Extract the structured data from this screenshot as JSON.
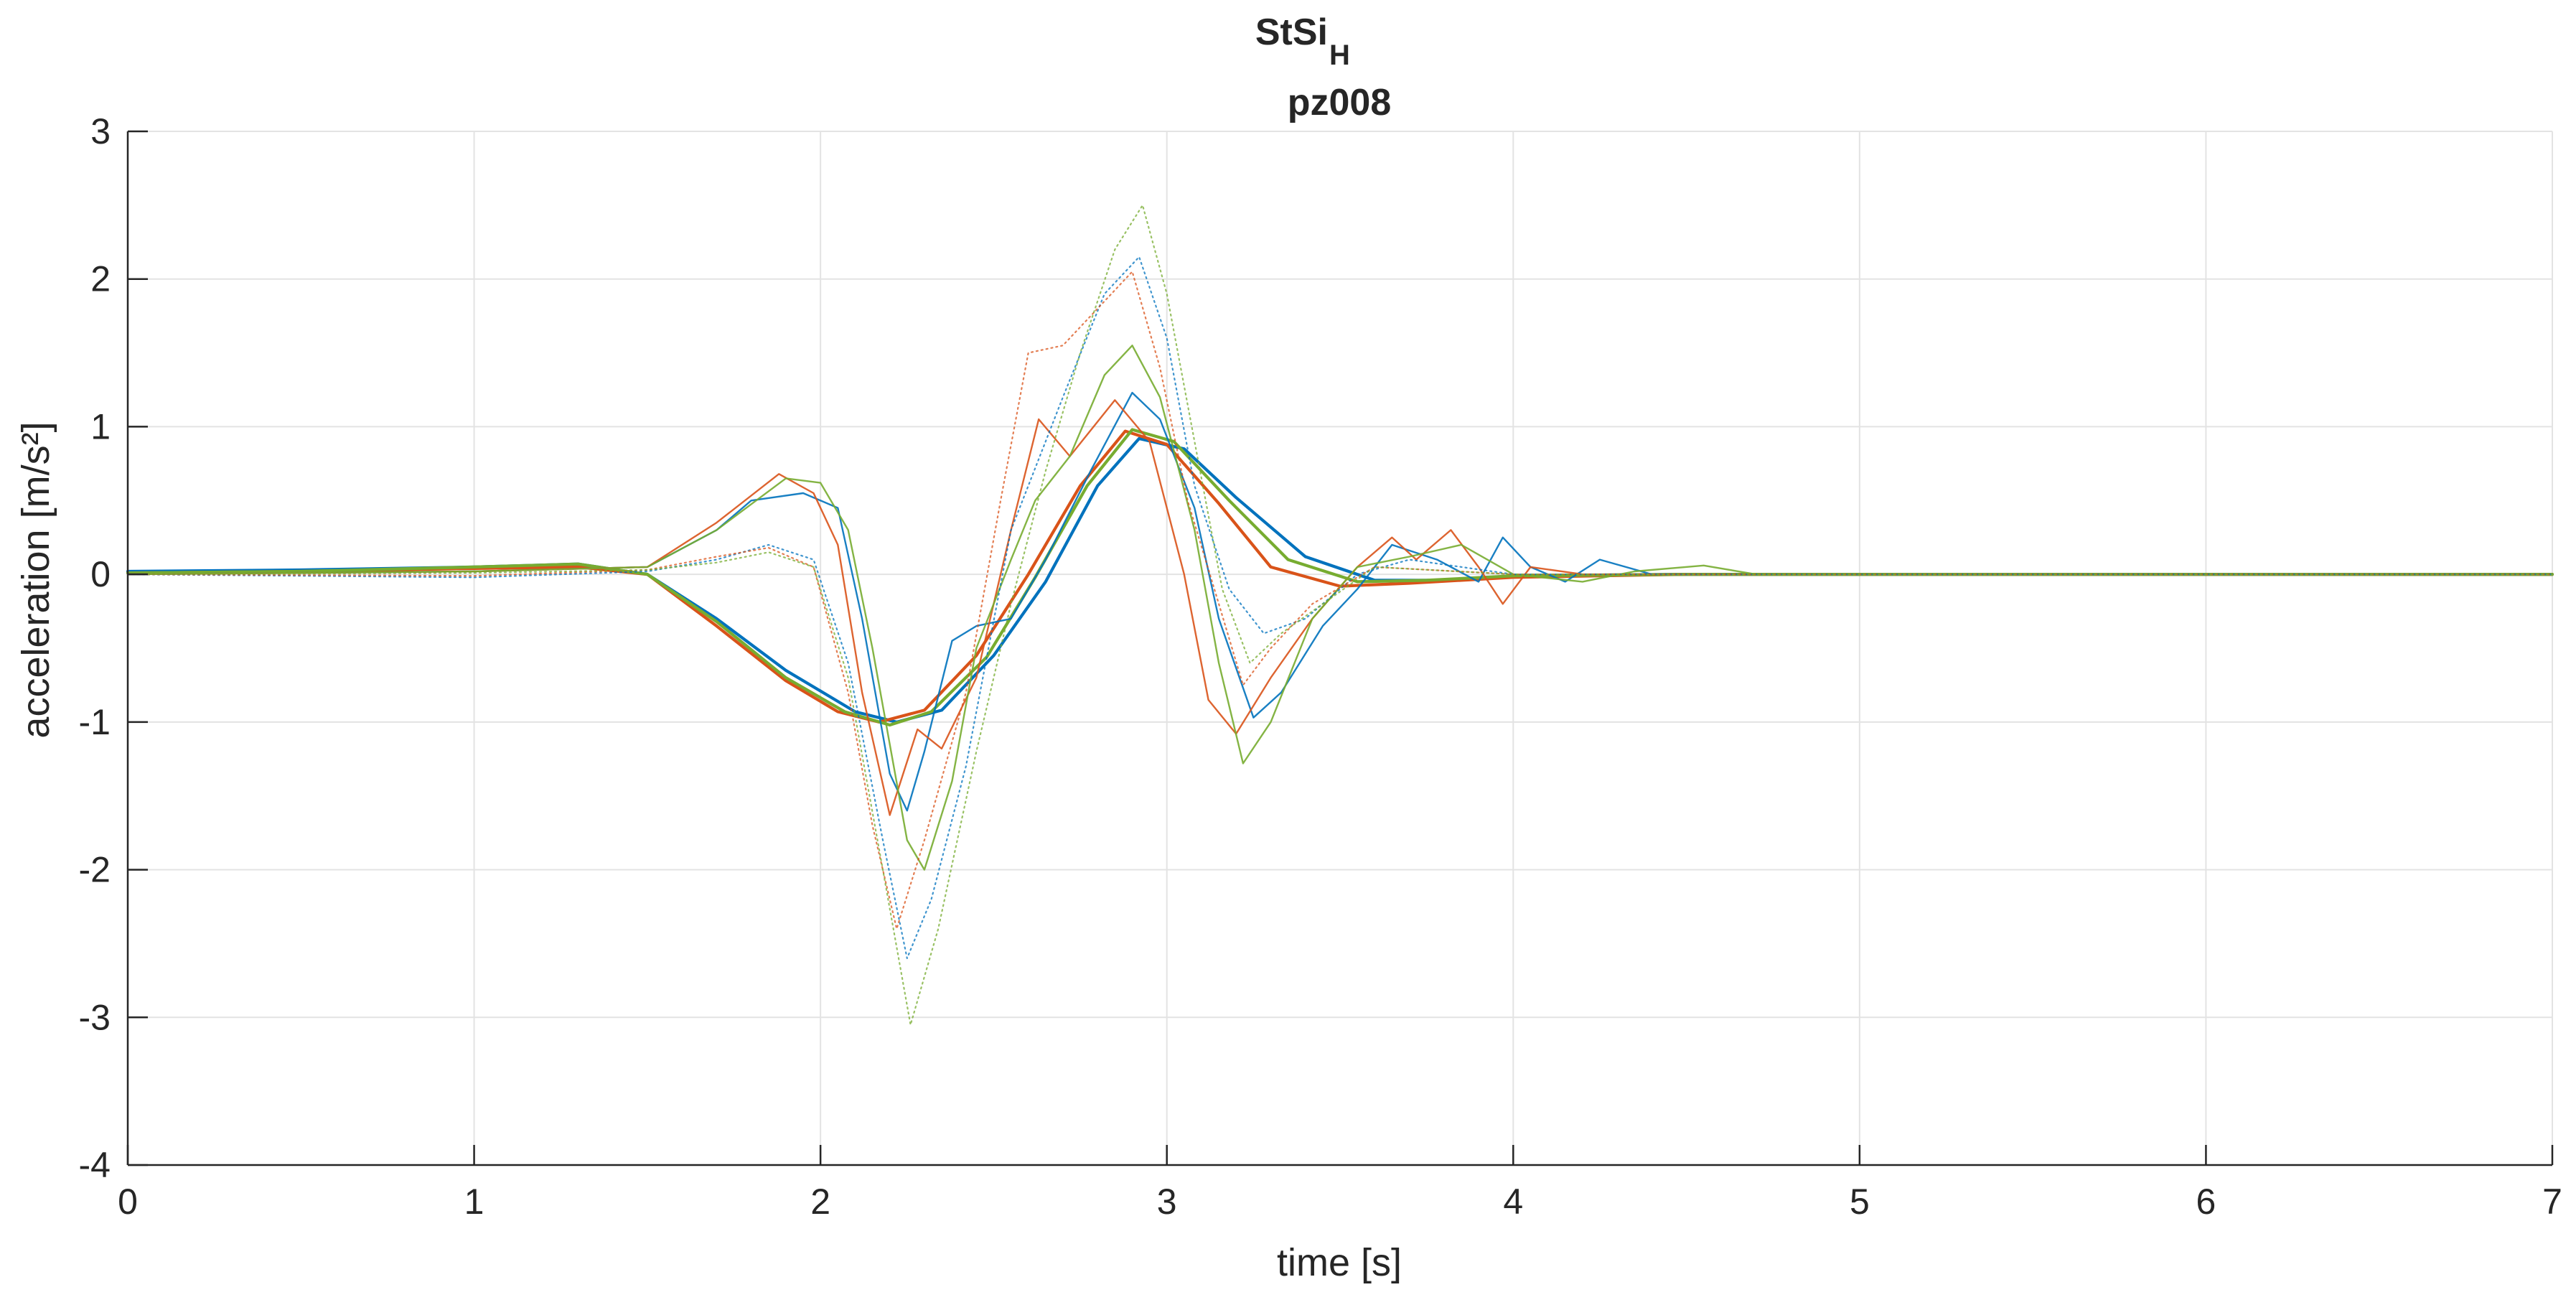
{
  "chart_data": {
    "type": "line",
    "title": "StSi",
    "title_subscript": "H",
    "subtitle": "pz008",
    "xlabel": "time [s]",
    "ylabel": "acceleration [m/s²]",
    "xlim": [
      0,
      7
    ],
    "ylim": [
      -4,
      3
    ],
    "xticks": [
      0,
      1,
      2,
      3,
      4,
      5,
      6,
      7
    ],
    "yticks": [
      -4,
      -3,
      -2,
      -1,
      0,
      1,
      2,
      3
    ],
    "xtick_labels": [
      "0",
      "1",
      "2",
      "3",
      "4",
      "5",
      "6",
      "7"
    ],
    "ytick_labels": [
      "-4",
      "-3",
      "-2",
      "-1",
      "0",
      "1",
      "2",
      "3"
    ],
    "grid": true,
    "series": [
      {
        "name": "blue-smooth",
        "color": "#0072BD",
        "style": "solid",
        "emphasis": "bold",
        "points": [
          [
            0,
            0.02
          ],
          [
            0.5,
            0.03
          ],
          [
            1.0,
            0.05
          ],
          [
            1.3,
            0.07
          ],
          [
            1.5,
            0.0
          ],
          [
            1.7,
            -0.3
          ],
          [
            1.9,
            -0.65
          ],
          [
            2.1,
            -0.93
          ],
          [
            2.22,
            -1.0
          ],
          [
            2.35,
            -0.92
          ],
          [
            2.5,
            -0.55
          ],
          [
            2.65,
            -0.05
          ],
          [
            2.8,
            0.6
          ],
          [
            2.92,
            0.92
          ],
          [
            3.05,
            0.85
          ],
          [
            3.2,
            0.52
          ],
          [
            3.4,
            0.12
          ],
          [
            3.6,
            -0.04
          ],
          [
            3.8,
            -0.04
          ],
          [
            4.0,
            -0.01
          ],
          [
            4.5,
            0.0
          ],
          [
            7.0,
            0.0
          ]
        ]
      },
      {
        "name": "red-smooth",
        "color": "#D95319",
        "style": "solid",
        "emphasis": "bold",
        "points": [
          [
            0,
            0.01
          ],
          [
            0.5,
            0.02
          ],
          [
            1.0,
            0.04
          ],
          [
            1.3,
            0.05
          ],
          [
            1.5,
            0.0
          ],
          [
            1.7,
            -0.35
          ],
          [
            1.9,
            -0.72
          ],
          [
            2.05,
            -0.93
          ],
          [
            2.17,
            -1.0
          ],
          [
            2.3,
            -0.92
          ],
          [
            2.45,
            -0.55
          ],
          [
            2.6,
            0.0
          ],
          [
            2.75,
            0.6
          ],
          [
            2.88,
            0.97
          ],
          [
            3.0,
            0.88
          ],
          [
            3.15,
            0.48
          ],
          [
            3.3,
            0.05
          ],
          [
            3.5,
            -0.08
          ],
          [
            3.7,
            -0.06
          ],
          [
            4.0,
            -0.02
          ],
          [
            4.5,
            0.0
          ],
          [
            7.0,
            0.0
          ]
        ]
      },
      {
        "name": "green-smooth",
        "color": "#77AC30",
        "style": "solid",
        "emphasis": "bold",
        "points": [
          [
            0,
            0.01
          ],
          [
            0.5,
            0.02
          ],
          [
            1.0,
            0.05
          ],
          [
            1.3,
            0.07
          ],
          [
            1.5,
            0.0
          ],
          [
            1.7,
            -0.32
          ],
          [
            1.9,
            -0.7
          ],
          [
            2.07,
            -0.93
          ],
          [
            2.2,
            -1.02
          ],
          [
            2.32,
            -0.93
          ],
          [
            2.48,
            -0.56
          ],
          [
            2.62,
            -0.02
          ],
          [
            2.77,
            0.6
          ],
          [
            2.9,
            0.98
          ],
          [
            3.02,
            0.9
          ],
          [
            3.18,
            0.5
          ],
          [
            3.35,
            0.1
          ],
          [
            3.55,
            -0.05
          ],
          [
            3.75,
            -0.04
          ],
          [
            4.0,
            -0.01
          ],
          [
            4.5,
            0.0
          ],
          [
            7.0,
            0.0
          ]
        ]
      },
      {
        "name": "blue-raw",
        "color": "#0072BD",
        "style": "solid",
        "emphasis": "thin",
        "points": [
          [
            0,
            0.0
          ],
          [
            1.0,
            0.02
          ],
          [
            1.5,
            0.05
          ],
          [
            1.7,
            0.3
          ],
          [
            1.8,
            0.5
          ],
          [
            1.95,
            0.55
          ],
          [
            2.05,
            0.45
          ],
          [
            2.12,
            -0.3
          ],
          [
            2.2,
            -1.35
          ],
          [
            2.25,
            -1.6
          ],
          [
            2.3,
            -1.2
          ],
          [
            2.38,
            -0.45
          ],
          [
            2.45,
            -0.35
          ],
          [
            2.55,
            -0.3
          ],
          [
            2.65,
            0.1
          ],
          [
            2.78,
            0.7
          ],
          [
            2.9,
            1.23
          ],
          [
            2.98,
            1.05
          ],
          [
            3.08,
            0.45
          ],
          [
            3.15,
            -0.3
          ],
          [
            3.25,
            -0.97
          ],
          [
            3.33,
            -0.8
          ],
          [
            3.45,
            -0.35
          ],
          [
            3.55,
            -0.1
          ],
          [
            3.65,
            0.2
          ],
          [
            3.78,
            0.1
          ],
          [
            3.9,
            -0.05
          ],
          [
            3.97,
            0.25
          ],
          [
            4.05,
            0.05
          ],
          [
            4.15,
            -0.05
          ],
          [
            4.25,
            0.1
          ],
          [
            4.4,
            0.0
          ],
          [
            7.0,
            0.0
          ]
        ]
      },
      {
        "name": "red-raw",
        "color": "#D95319",
        "style": "solid",
        "emphasis": "thin",
        "points": [
          [
            0,
            0.0
          ],
          [
            1.0,
            0.02
          ],
          [
            1.5,
            0.05
          ],
          [
            1.7,
            0.35
          ],
          [
            1.88,
            0.68
          ],
          [
            1.98,
            0.55
          ],
          [
            2.05,
            0.2
          ],
          [
            2.12,
            -0.8
          ],
          [
            2.2,
            -1.63
          ],
          [
            2.28,
            -1.05
          ],
          [
            2.35,
            -1.18
          ],
          [
            2.45,
            -0.7
          ],
          [
            2.55,
            0.3
          ],
          [
            2.63,
            1.05
          ],
          [
            2.72,
            0.8
          ],
          [
            2.85,
            1.18
          ],
          [
            2.95,
            0.9
          ],
          [
            3.05,
            0.0
          ],
          [
            3.12,
            -0.85
          ],
          [
            3.2,
            -1.08
          ],
          [
            3.3,
            -0.7
          ],
          [
            3.42,
            -0.3
          ],
          [
            3.55,
            0.05
          ],
          [
            3.65,
            0.25
          ],
          [
            3.72,
            0.1
          ],
          [
            3.82,
            0.3
          ],
          [
            3.9,
            0.05
          ],
          [
            3.97,
            -0.2
          ],
          [
            4.05,
            0.05
          ],
          [
            4.2,
            0.0
          ],
          [
            7.0,
            0.0
          ]
        ]
      },
      {
        "name": "green-raw",
        "color": "#77AC30",
        "style": "solid",
        "emphasis": "thin",
        "points": [
          [
            0,
            0.0
          ],
          [
            1.0,
            0.02
          ],
          [
            1.5,
            0.05
          ],
          [
            1.7,
            0.3
          ],
          [
            1.9,
            0.65
          ],
          [
            2.0,
            0.62
          ],
          [
            2.08,
            0.3
          ],
          [
            2.15,
            -0.5
          ],
          [
            2.25,
            -1.8
          ],
          [
            2.3,
            -2.0
          ],
          [
            2.38,
            -1.4
          ],
          [
            2.45,
            -0.5
          ],
          [
            2.55,
            0.1
          ],
          [
            2.62,
            0.5
          ],
          [
            2.72,
            0.8
          ],
          [
            2.82,
            1.35
          ],
          [
            2.9,
            1.55
          ],
          [
            2.98,
            1.2
          ],
          [
            3.08,
            0.3
          ],
          [
            3.15,
            -0.6
          ],
          [
            3.22,
            -1.28
          ],
          [
            3.3,
            -1.0
          ],
          [
            3.42,
            -0.3
          ],
          [
            3.55,
            0.05
          ],
          [
            3.7,
            0.12
          ],
          [
            3.85,
            0.2
          ],
          [
            4.0,
            0.0
          ],
          [
            4.2,
            -0.05
          ],
          [
            4.35,
            0.02
          ],
          [
            4.55,
            0.06
          ],
          [
            4.7,
            0.0
          ],
          [
            7.0,
            0.0
          ]
        ]
      },
      {
        "name": "blue-dotted",
        "color": "#0072BD",
        "style": "dotted",
        "emphasis": "thin",
        "points": [
          [
            0,
            0.0
          ],
          [
            1.0,
            -0.02
          ],
          [
            1.5,
            0.02
          ],
          [
            1.7,
            0.1
          ],
          [
            1.85,
            0.2
          ],
          [
            1.98,
            0.1
          ],
          [
            2.08,
            -0.6
          ],
          [
            2.18,
            -1.8
          ],
          [
            2.25,
            -2.6
          ],
          [
            2.32,
            -2.2
          ],
          [
            2.42,
            -1.3
          ],
          [
            2.55,
            0.3
          ],
          [
            2.7,
            1.2
          ],
          [
            2.82,
            1.9
          ],
          [
            2.92,
            2.15
          ],
          [
            3.0,
            1.6
          ],
          [
            3.08,
            0.6
          ],
          [
            3.18,
            -0.1
          ],
          [
            3.28,
            -0.4
          ],
          [
            3.4,
            -0.3
          ],
          [
            3.55,
            0.0
          ],
          [
            3.7,
            0.1
          ],
          [
            4.0,
            0.0
          ],
          [
            7.0,
            0.0
          ]
        ]
      },
      {
        "name": "red-dotted",
        "color": "#D95319",
        "style": "dotted",
        "emphasis": "thin",
        "points": [
          [
            0,
            0.0
          ],
          [
            1.0,
            -0.01
          ],
          [
            1.5,
            0.03
          ],
          [
            1.7,
            0.12
          ],
          [
            1.85,
            0.18
          ],
          [
            1.98,
            0.05
          ],
          [
            2.08,
            -0.8
          ],
          [
            2.15,
            -1.7
          ],
          [
            2.22,
            -2.4
          ],
          [
            2.3,
            -1.8
          ],
          [
            2.42,
            -0.8
          ],
          [
            2.52,
            0.5
          ],
          [
            2.6,
            1.5
          ],
          [
            2.7,
            1.55
          ],
          [
            2.8,
            1.8
          ],
          [
            2.9,
            2.05
          ],
          [
            2.98,
            1.4
          ],
          [
            3.06,
            0.5
          ],
          [
            3.15,
            -0.2
          ],
          [
            3.22,
            -0.75
          ],
          [
            3.3,
            -0.5
          ],
          [
            3.42,
            -0.2
          ],
          [
            3.6,
            0.05
          ],
          [
            4.0,
            0.0
          ],
          [
            7.0,
            0.0
          ]
        ]
      },
      {
        "name": "green-dotted",
        "color": "#77AC30",
        "style": "dotted",
        "emphasis": "thin",
        "points": [
          [
            0,
            0.0
          ],
          [
            1.0,
            0.01
          ],
          [
            1.5,
            0.03
          ],
          [
            1.7,
            0.08
          ],
          [
            1.85,
            0.15
          ],
          [
            1.98,
            0.05
          ],
          [
            2.08,
            -0.7
          ],
          [
            2.18,
            -2.0
          ],
          [
            2.26,
            -3.05
          ],
          [
            2.34,
            -2.4
          ],
          [
            2.45,
            -1.2
          ],
          [
            2.55,
            -0.2
          ],
          [
            2.65,
            0.7
          ],
          [
            2.75,
            1.5
          ],
          [
            2.85,
            2.2
          ],
          [
            2.93,
            2.5
          ],
          [
            3.0,
            1.9
          ],
          [
            3.08,
            0.9
          ],
          [
            3.16,
            -0.1
          ],
          [
            3.24,
            -0.6
          ],
          [
            3.33,
            -0.4
          ],
          [
            3.45,
            -0.2
          ],
          [
            3.6,
            0.05
          ],
          [
            4.0,
            0.0
          ],
          [
            7.0,
            0.0
          ]
        ]
      }
    ]
  }
}
